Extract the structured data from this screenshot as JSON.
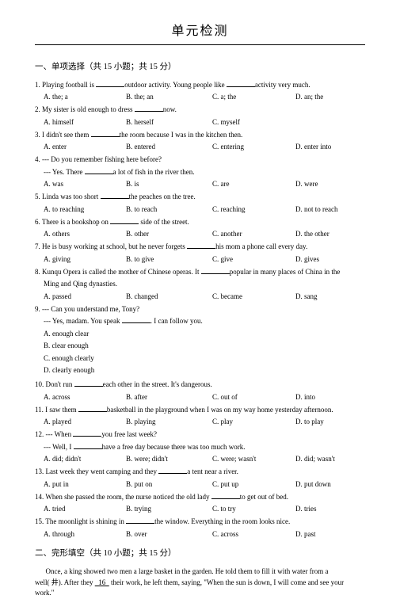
{
  "title": "单元检测",
  "section1": {
    "heading": "一、单项选择（共 15 小题；共 15 分）",
    "questions": [
      {
        "num": "1.",
        "stem_parts": [
          "Playing football is ",
          "outdoor activity. Young people like ",
          "activity very much."
        ],
        "blanks": [
          1,
          1
        ],
        "opts": [
          "A. the; a",
          "B. the; an",
          "C. a; the",
          "D. an; the"
        ],
        "layout": "col4"
      },
      {
        "num": "2.",
        "stem_parts": [
          "My sister is old enough to dress ",
          "now."
        ],
        "blanks": [
          1
        ],
        "opts": [
          "A. himself",
          "B. herself",
          "C. myself",
          ""
        ],
        "layout": "col4"
      },
      {
        "num": "3.",
        "stem_parts": [
          "I didn't see them ",
          "the room because I was in the kitchen then."
        ],
        "blanks": [
          1
        ],
        "opts": [
          "A. enter",
          "B. entered",
          "C. entering",
          "D. enter into"
        ],
        "layout": "col4"
      },
      {
        "num": "4.",
        "stem_lines": [
          "--- Do you remember fishing here before?",
          [
            "--- Yes. There ",
            "a lot of fish in the river then."
          ]
        ],
        "opts": [
          "A. was",
          "B. is",
          "C. are",
          "D. were"
        ],
        "layout": "col4"
      },
      {
        "num": "5.",
        "stem_parts": [
          "Linda was too short ",
          "the peaches on the tree."
        ],
        "blanks": [
          1
        ],
        "opts": [
          "A. to reaching",
          "B. to reach",
          "C. reaching",
          "D. not to reach"
        ],
        "layout": "col4"
      },
      {
        "num": "6.",
        "stem_parts": [
          "There is a bookshop on ",
          " side of the street."
        ],
        "blanks": [
          1
        ],
        "opts": [
          "A. others",
          "B. other",
          "C. another",
          "D. the other"
        ],
        "layout": "col4"
      },
      {
        "num": "7.",
        "stem_parts": [
          "He is busy working at school, but he never forgets ",
          "his mom a phone call every day."
        ],
        "blanks": [
          1
        ],
        "opts": [
          "A. giving",
          "B. to give",
          "C. give",
          "D. gives"
        ],
        "layout": "col4"
      },
      {
        "num": "8.",
        "stem_parts": [
          "Kunqu Opera is called the mother of Chinese operas. It ",
          "popular in many places of China in the"
        ],
        "blanks": [
          1
        ],
        "cont": "Ming and Qing dynasties.",
        "opts": [
          "A. passed",
          "B. changed",
          "C. became",
          "D. sang"
        ],
        "layout": "col4"
      },
      {
        "num": "9.",
        "stem_lines": [
          "--- Can you understand me, Tony?",
          [
            "--- Yes, madam. You speak ",
            ". I can follow you."
          ]
        ],
        "opts": [
          "A. enough clear",
          "B. clear enough",
          "C. enough clearly",
          "D. clearly enough"
        ],
        "layout": "col2"
      },
      {
        "num": "10.",
        "stem_parts": [
          "Don't run ",
          "each other in the street. It's dangerous."
        ],
        "blanks": [
          1
        ],
        "opts": [
          "A. across",
          "B. after",
          "C. out of",
          "D. into"
        ],
        "layout": "col4"
      },
      {
        "num": "11.",
        "stem_parts": [
          "I saw them ",
          "basketball in the playground when I was on my way home yesterday afternoon."
        ],
        "blanks": [
          1
        ],
        "opts": [
          "A. played",
          "B. playing",
          "C. play",
          "D. to play"
        ],
        "layout": "col4"
      },
      {
        "num": "12.",
        "stem_lines": [
          [
            "--- When ",
            "you free last week?"
          ],
          [
            "--- Well, I ",
            "have a free day because there was too much work."
          ]
        ],
        "opts": [
          "A. did; didn't",
          "B. were; didn't",
          "C. were; wasn't",
          "D. did; wasn't"
        ],
        "layout": "col4"
      },
      {
        "num": "13.",
        "stem_parts": [
          "Last week they went camping and they ",
          "a tent near a river."
        ],
        "blanks": [
          1
        ],
        "opts": [
          "A. put in",
          "B. put on",
          "C. put up",
          "D. put down"
        ],
        "layout": "col4"
      },
      {
        "num": "14.",
        "stem_parts": [
          "When she passed the room, the nurse noticed the old lady ",
          "to get out of bed."
        ],
        "blanks": [
          1
        ],
        "opts": [
          "A. tried",
          "B. trying",
          "C. to try",
          "D. tries"
        ],
        "layout": "col4"
      },
      {
        "num": "15.",
        "stem_parts": [
          "The moonlight is shining in ",
          "the window. Everything in the room looks nice."
        ],
        "blanks": [
          1
        ],
        "opts": [
          "A. through",
          "B. over",
          "C. across",
          "D. past"
        ],
        "layout": "col4"
      }
    ]
  },
  "section2": {
    "heading": "二、完形填空（共 10 小题；共 15 分）",
    "passage_lines": [
      "Once,  a king  showed  two  men  a large basket  in  the  garden.  He  told  them  to  fill    it with water from a",
      "well( 井). After they    16   their work, he left them, saying, \"When the sun is down, I will come and see your",
      "work.\""
    ]
  }
}
